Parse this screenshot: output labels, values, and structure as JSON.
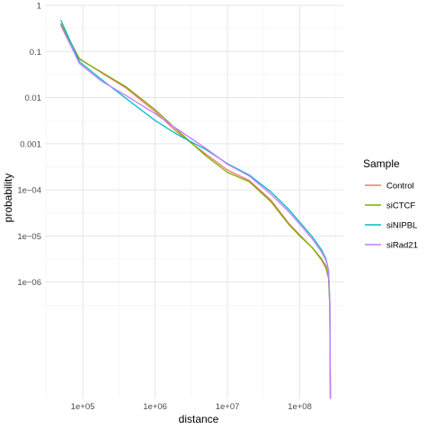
{
  "chart_data": {
    "type": "line",
    "xlabel": "distance",
    "ylabel": "probability",
    "x_scale": "log",
    "y_scale": "log",
    "xlim": [
      30000,
      400000000
    ],
    "ylim": [
      3e-09,
      1
    ],
    "x_major_ticks": [
      {
        "value": 100000,
        "label": "1e+05"
      },
      {
        "value": 1000000,
        "label": "1e+06"
      },
      {
        "value": 10000000,
        "label": "1e+07"
      },
      {
        "value": 100000000,
        "label": "1e+08"
      }
    ],
    "y_major_ticks": [
      {
        "value": 1,
        "label": "1"
      },
      {
        "value": 0.1,
        "label": "0.1"
      },
      {
        "value": 0.01,
        "label": "0.01"
      },
      {
        "value": 0.001,
        "label": "0.001"
      },
      {
        "value": 0.0001,
        "label": "1e−04"
      },
      {
        "value": 1e-05,
        "label": "1e−05"
      },
      {
        "value": 1e-06,
        "label": "1e−06"
      }
    ],
    "grid": true,
    "legend": {
      "title": "Sample",
      "position": "right"
    },
    "series": [
      {
        "name": "Control",
        "color": "#F8766D",
        "x": [
          50000,
          90000,
          180000,
          400000,
          1000000,
          2000000,
          5000000,
          10000000,
          20000000,
          40000000,
          70000000,
          100000000,
          150000000,
          200000000,
          230000000,
          250000000,
          260000000,
          265000000
        ],
        "y": [
          0.4,
          0.07,
          0.035,
          0.016,
          0.005,
          0.0018,
          0.0006,
          0.00027,
          0.00016,
          6e-05,
          1.9e-05,
          1.05e-05,
          5.5e-06,
          3e-06,
          2e-06,
          1.2e-06,
          3e-07,
          3e-09
        ]
      },
      {
        "name": "siCTCF",
        "color": "#7CAE00",
        "x": [
          50000,
          90000,
          180000,
          400000,
          1000000,
          2000000,
          5000000,
          10000000,
          20000000,
          40000000,
          70000000,
          100000000,
          150000000,
          200000000,
          230000000,
          250000000,
          260000000,
          265000000
        ],
        "y": [
          0.38,
          0.068,
          0.036,
          0.017,
          0.0055,
          0.002,
          0.00055,
          0.00024,
          0.00015,
          5.5e-05,
          1.8e-05,
          1e-05,
          5.5e-06,
          3.2e-06,
          2.2e-06,
          1.3e-06,
          3e-07,
          3e-09
        ]
      },
      {
        "name": "siNIPBL",
        "color": "#00BFC4",
        "x": [
          50000,
          90000,
          180000,
          400000,
          1000000,
          2000000,
          5000000,
          10000000,
          20000000,
          40000000,
          70000000,
          100000000,
          150000000,
          200000000,
          230000000,
          250000000,
          260000000,
          265000000
        ],
        "y": [
          0.47,
          0.06,
          0.025,
          0.0095,
          0.0032,
          0.0016,
          0.00075,
          0.00037,
          0.00021,
          9e-05,
          3.8e-05,
          2e-05,
          9.5e-06,
          5e-06,
          3.2e-06,
          1.8e-06,
          4e-07,
          3e-09
        ]
      },
      {
        "name": "siRad21",
        "color": "#C77CFF",
        "x": [
          50000,
          90000,
          180000,
          400000,
          1000000,
          2000000,
          5000000,
          10000000,
          20000000,
          40000000,
          70000000,
          100000000,
          150000000,
          200000000,
          230000000,
          250000000,
          260000000,
          265000000
        ],
        "y": [
          0.36,
          0.055,
          0.023,
          0.011,
          0.0045,
          0.0021,
          0.0008,
          0.00036,
          0.0002,
          8e-05,
          3.4e-05,
          1.8e-05,
          8.5e-06,
          4.5e-06,
          3e-06,
          1.7e-06,
          4e-07,
          3e-09
        ]
      }
    ]
  }
}
